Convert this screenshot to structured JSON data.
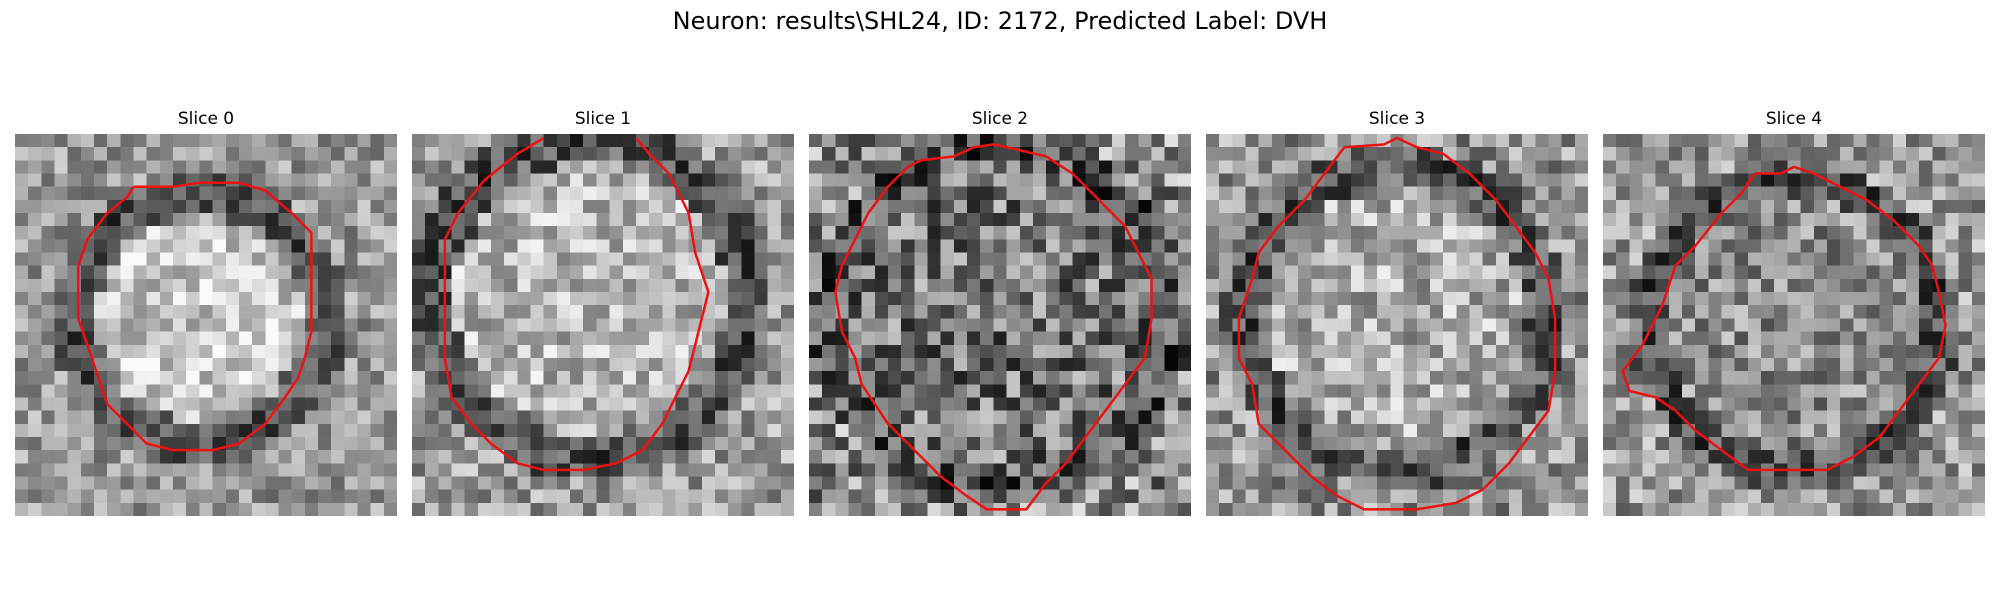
{
  "figure": {
    "title": "Neuron: results\\SHL24, ID: 2172, Predicted Label: DVH"
  },
  "contour_color": "#ee1111",
  "panels": [
    {
      "label": "Slice 0"
    },
    {
      "label": "Slice 1"
    },
    {
      "label": "Slice 2"
    },
    {
      "label": "Slice 3"
    },
    {
      "label": "Slice 4"
    }
  ]
}
